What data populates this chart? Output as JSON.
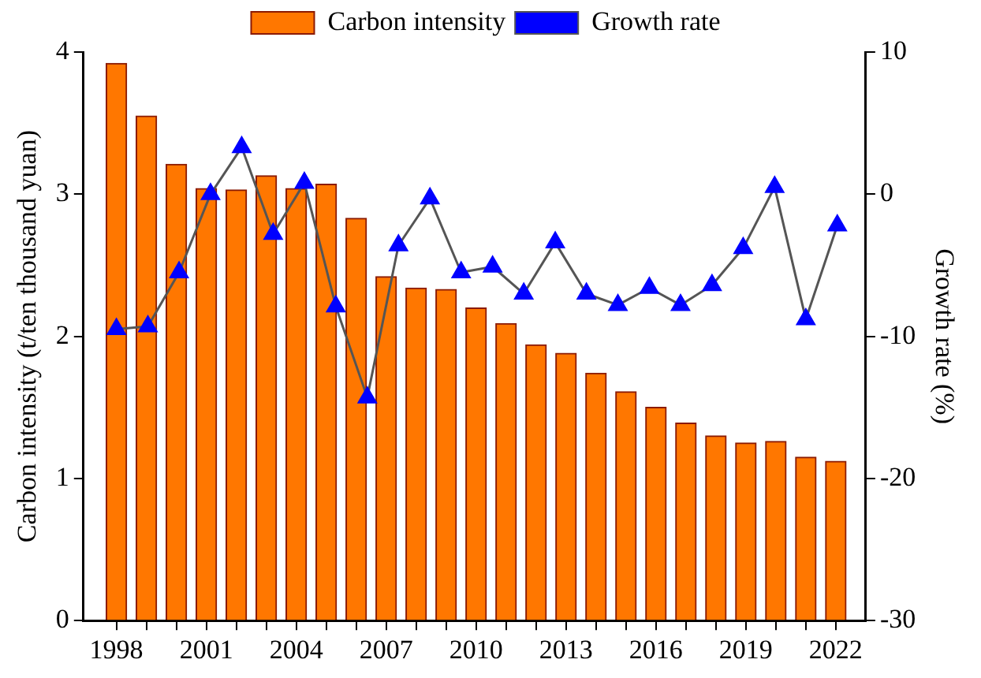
{
  "chart_data": {
    "type": "bar",
    "ylabel": "Carbon intensity (t/ten thousand yuan)",
    "y2label": "Growth rate (%)",
    "x": [
      1998,
      1999,
      2000,
      2001,
      2002,
      2003,
      2004,
      2005,
      2006,
      2007,
      2008,
      2009,
      2010,
      2011,
      2012,
      2013,
      2014,
      2015,
      2016,
      2017,
      2018,
      2019,
      2020,
      2021,
      2022
    ],
    "xlim": [
      1996.9,
      2023
    ],
    "xticks": [
      1998,
      {
        "value": 1999,
        "label": null
      },
      {
        "value": 2000,
        "label": null
      },
      2001,
      {
        "value": 2002,
        "label": null
      },
      {
        "value": 2003,
        "label": null
      },
      2004,
      {
        "value": 2005,
        "label": null
      },
      {
        "value": 2006,
        "label": null
      },
      2007,
      {
        "value": 2008,
        "label": null
      },
      {
        "value": 2009,
        "label": null
      },
      2010,
      {
        "value": 2011,
        "label": null
      },
      {
        "value": 2012,
        "label": null
      },
      2013,
      {
        "value": 2014,
        "label": null
      },
      {
        "value": 2015,
        "label": null
      },
      2016,
      {
        "value": 2017,
        "label": null
      },
      {
        "value": 2018,
        "label": null
      },
      2019,
      {
        "value": 2020,
        "label": null
      },
      {
        "value": 2021,
        "label": null
      },
      2022
    ],
    "ylim": [
      0,
      4
    ],
    "yticks": [
      0,
      1,
      2,
      3,
      4
    ],
    "y2lim": [
      -30,
      10
    ],
    "y2ticks": [
      -30,
      -20,
      -10,
      0,
      10
    ],
    "series": [
      {
        "name": "Carbon intensity",
        "color": "#ff7700",
        "values": [
          3.92,
          3.55,
          3.21,
          3.04,
          3.03,
          3.13,
          3.04,
          3.07,
          2.83,
          2.42,
          2.34,
          2.33,
          2.2,
          2.09,
          1.94,
          1.88,
          1.74,
          1.61,
          1.5,
          1.39,
          1.3,
          1.25,
          1.26,
          1.15,
          1.12
        ]
      },
      {
        "name": "Growth rate",
        "type": "line",
        "axis": "y2",
        "color": "#0000ff",
        "marker": "triangle",
        "x": [
          1998,
          1999.05,
          2000.09,
          2001.14,
          2002.18,
          2003.23,
          2004.27,
          2005.32,
          2006.37,
          2007.41,
          2008.46,
          2009.5,
          2010.55,
          2011.59,
          2012.64,
          2013.68,
          2014.73,
          2015.78,
          2016.82,
          2017.87,
          2018.91,
          2019.96,
          2021,
          2022.05
        ],
        "values": [
          -9.5,
          -9.3,
          -5.5,
          0,
          3.3,
          -2.8,
          0.8,
          -7.9,
          -14.3,
          -3.6,
          -0.3,
          -5.5,
          -5.1,
          -7,
          -3.4,
          -7,
          -7.8,
          -6.6,
          -7.8,
          -6.4,
          -3.8,
          0.5,
          -8.8,
          -2.2
        ]
      }
    ],
    "grid": false,
    "legend": "top"
  }
}
